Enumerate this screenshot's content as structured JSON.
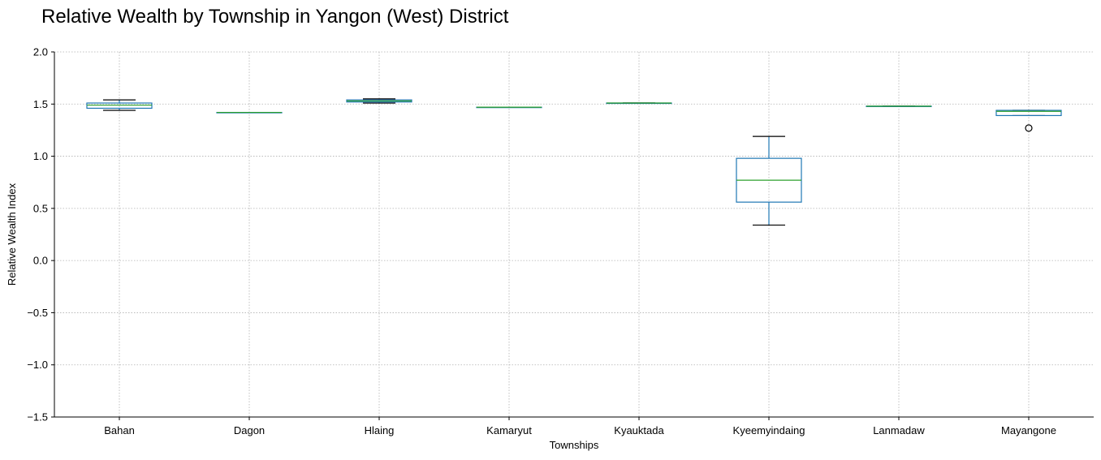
{
  "chart_data": {
    "type": "box",
    "title": "Relative Wealth by Township in Yangon (West) District",
    "xlabel": "Townships",
    "ylabel": "Relative Wealth Index",
    "ylim": [
      -1.5,
      2.0
    ],
    "yticks": [
      2.0,
      1.5,
      1.0,
      0.5,
      0.0,
      -0.5,
      -1.0,
      -1.5
    ],
    "ytick_labels": [
      "2.0",
      "1.5",
      "1.0",
      "0.5",
      "0.0",
      "−0.5",
      "−1.0",
      "−1.5"
    ],
    "grid": true,
    "categories": [
      "Bahan",
      "Dagon",
      "Hlaing",
      "Kamaryut",
      "Kyauktada",
      "Kyeemyindaing",
      "Lanmadaw",
      "Mayangone"
    ],
    "boxes": [
      {
        "whislo": 1.44,
        "q1": 1.46,
        "med": 1.49,
        "q3": 1.51,
        "whishi": 1.54,
        "fliers": []
      },
      {
        "whislo": 1.42,
        "q1": 1.42,
        "med": 1.42,
        "q3": 1.42,
        "whishi": 1.42,
        "fliers": []
      },
      {
        "whislo": 1.51,
        "q1": 1.52,
        "med": 1.53,
        "q3": 1.54,
        "whishi": 1.55,
        "fliers": []
      },
      {
        "whislo": 1.47,
        "q1": 1.47,
        "med": 1.47,
        "q3": 1.47,
        "whishi": 1.47,
        "fliers": []
      },
      {
        "whislo": 1.51,
        "q1": 1.51,
        "med": 1.51,
        "q3": 1.51,
        "whishi": 1.51,
        "fliers": []
      },
      {
        "whislo": 0.34,
        "q1": 0.56,
        "med": 0.77,
        "q3": 0.98,
        "whishi": 1.19,
        "fliers": []
      },
      {
        "whislo": 1.48,
        "q1": 1.48,
        "med": 1.48,
        "q3": 1.48,
        "whishi": 1.48,
        "fliers": []
      },
      {
        "whislo": 1.39,
        "q1": 1.39,
        "med": 1.43,
        "q3": 1.44,
        "whishi": 1.44,
        "fliers": [
          1.27
        ]
      }
    ],
    "colors": {
      "box": "#1f77b4",
      "median": "#2ca02c",
      "cap": "#000000",
      "flier": "#000000"
    }
  }
}
